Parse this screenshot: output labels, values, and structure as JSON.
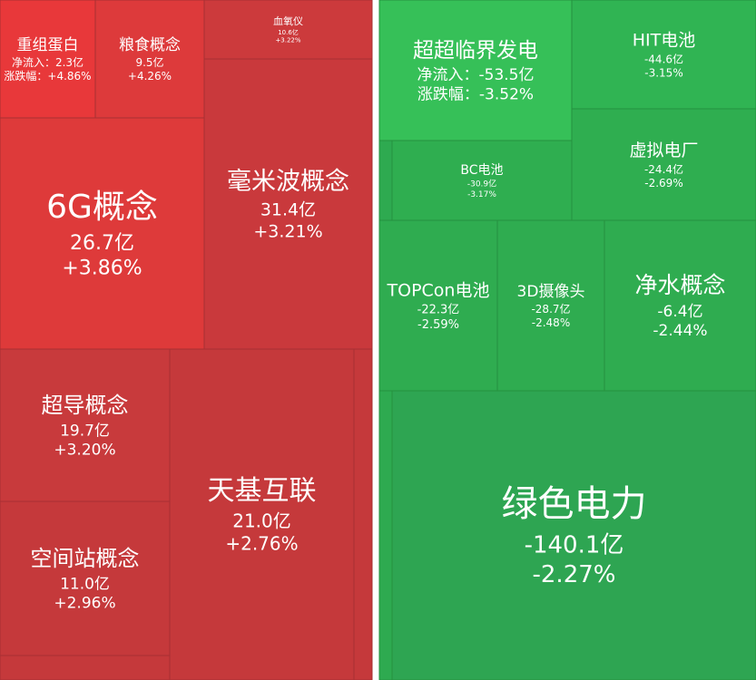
{
  "left_tiles": [
    {
      "name": "重组蛋白",
      "lines": [
        "净流入：2.3亿",
        "涨跌幅：+4.86%"
      ]
    },
    {
      "name": "粮食概念",
      "lines": [
        "9.5亿",
        "+4.26%"
      ]
    },
    {
      "name": "血氧仪",
      "lines": [
        "10.6亿",
        "+3.22%"
      ]
    },
    {
      "name": "6G概念",
      "lines": [
        "26.7亿",
        "+3.86%"
      ]
    },
    {
      "name": "毫米波概念",
      "lines": [
        "31.4亿",
        "+3.21%"
      ]
    },
    {
      "name": "超导概念",
      "lines": [
        "19.7亿",
        "+3.20%"
      ]
    },
    {
      "name": "空间站概念",
      "lines": [
        "11.0亿",
        "+2.96%"
      ]
    },
    {
      "name": "天基互联",
      "lines": [
        "21.0亿",
        "+2.76%"
      ]
    }
  ],
  "right_tiles": [
    {
      "name": "超超临界发电",
      "lines": [
        "净流入：-53.5亿",
        "涨跌幅：-3.52%"
      ]
    },
    {
      "name": "HIT电池",
      "lines": [
        "-44.6亿",
        "-3.15%"
      ]
    },
    {
      "name": "BC电池",
      "lines": [
        "-30.9亿",
        "-3.17%"
      ]
    },
    {
      "name": "虚拟电厂",
      "lines": [
        "-24.4亿",
        "-2.69%"
      ]
    },
    {
      "name": "TOPCon电池",
      "lines": [
        "-22.3亿",
        "-2.59%"
      ]
    },
    {
      "name": "3D摄像头",
      "lines": [
        "-28.7亿",
        "-2.48%"
      ]
    },
    {
      "name": "净水概念",
      "lines": [
        "-6.4亿",
        "-2.44%"
      ]
    },
    {
      "name": "绿色电力",
      "lines": [
        "-140.1亿",
        "-2.27%"
      ]
    }
  ]
}
